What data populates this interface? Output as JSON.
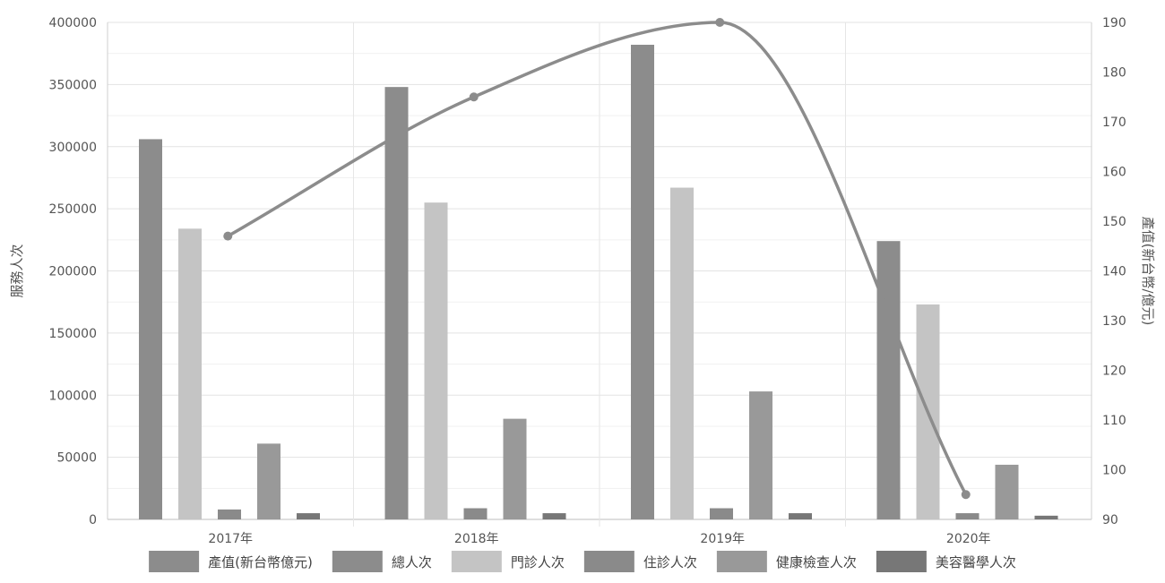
{
  "chart_data": {
    "type": "bar",
    "categories": [
      "2017年",
      "2018年",
      "2019年",
      "2020年"
    ],
    "y_left": {
      "label": "服務人次",
      "min": 0,
      "max": 400000,
      "ticks": [
        "0",
        "50000",
        "100000",
        "150000",
        "200000",
        "250000",
        "300000",
        "350000",
        "400000"
      ]
    },
    "y_right": {
      "label": "產值(新台幣/億元)",
      "min": 90,
      "max": 190,
      "ticks": [
        "90",
        "100",
        "110",
        "120",
        "130",
        "140",
        "150",
        "160",
        "170",
        "180",
        "190"
      ]
    },
    "series": [
      {
        "name": "總人次",
        "type": "bar",
        "axis": "left",
        "color": "#8c8c8c",
        "values": [
          306000,
          348000,
          382000,
          224000
        ]
      },
      {
        "name": "門診人次",
        "type": "bar",
        "axis": "left",
        "color": "#c4c4c4",
        "values": [
          234000,
          255000,
          267000,
          173000
        ]
      },
      {
        "name": "住診人次",
        "type": "bar",
        "axis": "left",
        "color": "#8a8a8a",
        "values": [
          8000,
          9000,
          9000,
          5000
        ]
      },
      {
        "name": "健康檢查人次",
        "type": "bar",
        "axis": "left",
        "color": "#999999",
        "values": [
          61000,
          81000,
          103000,
          44000
        ]
      },
      {
        "name": "美容醫學人次",
        "type": "bar",
        "axis": "left",
        "color": "#777777",
        "values": [
          5000,
          5000,
          5000,
          3000
        ]
      },
      {
        "name": "產值(新台幣億元)",
        "type": "line",
        "axis": "right",
        "color": "#8c8c8c",
        "values": [
          147,
          175,
          190,
          95
        ]
      }
    ],
    "legend_order": [
      "產值(新台幣億元)",
      "總人次",
      "門診人次",
      "住診人次",
      "健康檢查人次",
      "美容醫學人次"
    ],
    "legend_position": "bottom",
    "grid": true
  }
}
